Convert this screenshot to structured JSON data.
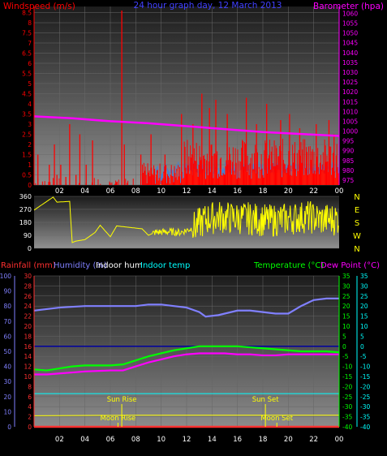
{
  "colors": {
    "background": "#000000",
    "wind": "#ff0000",
    "gust_band": "#3a7fe0",
    "wind_avg": "#ffff66",
    "barometer": "#ff00ff",
    "direction": "#ffff00",
    "temperature": "#00ff00",
    "dewpoint": "#ff00ff",
    "humidity": "#8080ff",
    "indoor_temp": "#00ffff",
    "rain": "#ff3030",
    "sun": "#ffff00",
    "tick_label": "#ffffff",
    "title": "#4040ff"
  },
  "header": {
    "title": "24 hour graph day, 12 March 2013",
    "wind_label": "Windspeed (m/s)",
    "baro_label": "Barometer (hpa)"
  },
  "legend": {
    "rainfall": "Rainfall (mm)",
    "humidity": "Humidity (%)",
    "indoor_hum": "Indoor hum",
    "indoor_temp": "Indoor temp",
    "temperature": "Temperature (°C)",
    "dewpoint": "Dew Point (°C)"
  },
  "chart_data": [
    {
      "type": "bar",
      "id": "wind",
      "title": "24 hour graph day, 12 March 2013",
      "ylabel": "Windspeed (m/s)",
      "y2label": "Barometer (hpa)",
      "ylim": [
        0,
        8.8
      ],
      "y2lim": [
        972.5,
        1063.5
      ],
      "yticks": [
        0,
        0.5,
        1,
        1.5,
        2,
        2.5,
        3,
        3.5,
        4,
        4.5,
        5,
        5.5,
        6,
        6.5,
        7,
        7.5,
        8,
        8.5
      ],
      "y2ticks": [
        975,
        980,
        985,
        990,
        995,
        1000,
        1005,
        1010,
        1015,
        1020,
        1025,
        1030,
        1035,
        1040,
        1045,
        1050,
        1055,
        1060
      ],
      "xticks": [
        "02",
        "04",
        "06",
        "08",
        "10",
        "12",
        "14",
        "16",
        "18",
        "20",
        "22",
        "00"
      ],
      "grid": true,
      "series": [
        {
          "name": "Windspeed (m/s)",
          "kind": "gust",
          "x": [
            0.3,
            1.2,
            1.6,
            1.8,
            2.1,
            2.5,
            2.8,
            3.3,
            3.6,
            4.1,
            4.6,
            6.9,
            7.1,
            8.4,
            9.2,
            10.3,
            11.6,
            12.5,
            13.2,
            13.8,
            14.3,
            15.2,
            16.7,
            17.5,
            18.3,
            19.4,
            20.1,
            20.9,
            22.2,
            23.2,
            23.6
          ],
          "values": [
            1.5,
            1.0,
            2.0,
            0.5,
            1.0,
            0.4,
            3.0,
            0.5,
            2.5,
            1.0,
            2.2,
            8.6,
            2.0,
            1.5,
            2.5,
            1.5,
            3.5,
            3.0,
            4.5,
            3.8,
            4.2,
            3.5,
            4.3,
            3.0,
            4.0,
            3.2,
            3.5,
            2.8,
            3.0,
            3.2,
            2.5
          ]
        },
        {
          "name": "Barometer (hpa)",
          "kind": "barometer",
          "x": [
            0,
            3,
            6,
            9,
            12,
            15,
            18,
            21,
            24
          ],
          "values": [
            1007.5,
            1006.5,
            1005,
            1004,
            1002.5,
            1001,
            999.5,
            998.5,
            997.5
          ]
        }
      ]
    },
    {
      "type": "scatter",
      "id": "direction",
      "ylim": [
        0,
        360
      ],
      "yticks": [
        0,
        90,
        180,
        270,
        360
      ],
      "y2ticks": [
        "N",
        "W",
        "S",
        "E",
        "N"
      ],
      "xticks": [
        "02",
        "04",
        "06",
        "08",
        "10",
        "12",
        "14",
        "16",
        "18",
        "20",
        "22",
        "00"
      ],
      "series": [
        {
          "name": "Wind direction",
          "x": [
            0,
            1.5,
            1.8,
            2.8,
            3.0,
            3.3,
            4.0,
            4.8,
            5.2,
            6.0,
            6.5,
            8.5,
            9.0,
            9.5,
            10.5,
            11.5,
            12.5,
            13.5,
            14.5,
            15.5,
            16.5,
            17.5,
            18.5,
            19.5,
            20.5,
            21.5,
            22.5,
            23.5,
            24.0
          ],
          "values": [
            265,
            355,
            320,
            325,
            40,
            50,
            60,
            110,
            160,
            80,
            155,
            135,
            90,
            110,
            115,
            110,
            140,
            200,
            220,
            210,
            210,
            200,
            190,
            200,
            210,
            220,
            200,
            200,
            210
          ]
        }
      ]
    },
    {
      "type": "line",
      "id": "temp_hum",
      "ylabel": "Humidity (%)",
      "y2label": "Temperature (°C)",
      "ylim": [
        0,
        100
      ],
      "y2lim": [
        -40,
        35
      ],
      "yticks": [
        0,
        10,
        20,
        30,
        40,
        50,
        60,
        70,
        80,
        90,
        100
      ],
      "rain_ticks": [
        0,
        2,
        4,
        6,
        8,
        10,
        12,
        14,
        16,
        18,
        20,
        22,
        24,
        26,
        28,
        30
      ],
      "y2ticks": [
        -40,
        -35,
        -30,
        -25,
        -20,
        -15,
        -10,
        -5,
        0,
        5,
        10,
        15,
        20,
        25,
        30,
        35
      ],
      "xticks": [
        "02",
        "04",
        "06",
        "08",
        "10",
        "12",
        "14",
        "16",
        "18",
        "20",
        "22",
        "00"
      ],
      "grid": true,
      "series": [
        {
          "name": "Humidity (%)",
          "x": [
            0,
            1,
            2,
            4,
            6,
            8,
            9,
            10,
            11,
            12,
            13,
            13.5,
            14.5,
            16,
            17,
            18,
            19,
            20,
            21,
            22,
            23,
            24
          ],
          "values": [
            77,
            78,
            79,
            80,
            80,
            80,
            81,
            81,
            80,
            79,
            76,
            73,
            74,
            77,
            77,
            76,
            75,
            75,
            80,
            84,
            85,
            85
          ]
        },
        {
          "name": "Indoor temp",
          "x": [
            0,
            4,
            8,
            12,
            16,
            20,
            24
          ],
          "values": [
            22,
            22,
            22,
            22,
            22,
            22,
            22
          ]
        },
        {
          "name": "Temperature (°C)",
          "x": [
            0,
            1,
            2,
            3,
            4,
            6,
            7,
            8,
            9,
            10,
            11,
            12,
            13,
            14,
            15,
            16,
            17,
            18,
            19,
            20,
            21,
            22,
            23,
            24
          ],
          "values": [
            -11.5,
            -12,
            -11,
            -10,
            -9.5,
            -9.5,
            -9,
            -7,
            -5,
            -3.5,
            -2,
            -1,
            0,
            0,
            0,
            0,
            -0.5,
            -1,
            -1.5,
            -2,
            -2.5,
            -2.5,
            -2.5,
            -3
          ]
        },
        {
          "name": "Dew Point (°C)",
          "x": [
            0,
            1,
            2,
            3,
            4,
            6,
            7,
            8,
            9,
            10,
            11,
            12,
            13,
            14,
            15,
            16,
            17,
            18,
            19,
            20,
            21,
            22,
            23,
            24
          ],
          "values": [
            -14,
            -14,
            -13.5,
            -13,
            -12.5,
            -12,
            -12,
            -10,
            -8,
            -6.5,
            -5,
            -4,
            -3.5,
            -3.5,
            -3.5,
            -4,
            -4,
            -4.5,
            -4.5,
            -4,
            -4,
            -4,
            -4,
            -4
          ]
        },
        {
          "name": "Indoor hum",
          "x": [
            0,
            8,
            13.5,
            16,
            17,
            24
          ],
          "values": [
            2.2,
            2.3,
            2.3,
            2.3,
            2.3,
            2.3
          ]
        },
        {
          "name": "Rainfall (mm)",
          "x": [
            0,
            24
          ],
          "values": [
            0,
            0
          ]
        }
      ],
      "annotations": [
        {
          "label": "Sun Rise",
          "x": 6.9
        },
        {
          "label": "Moon Rise",
          "x": 6.6
        },
        {
          "label": "Sun Set",
          "x": 18.2
        },
        {
          "label": "Moon Set",
          "x": 19.1
        }
      ]
    }
  ]
}
